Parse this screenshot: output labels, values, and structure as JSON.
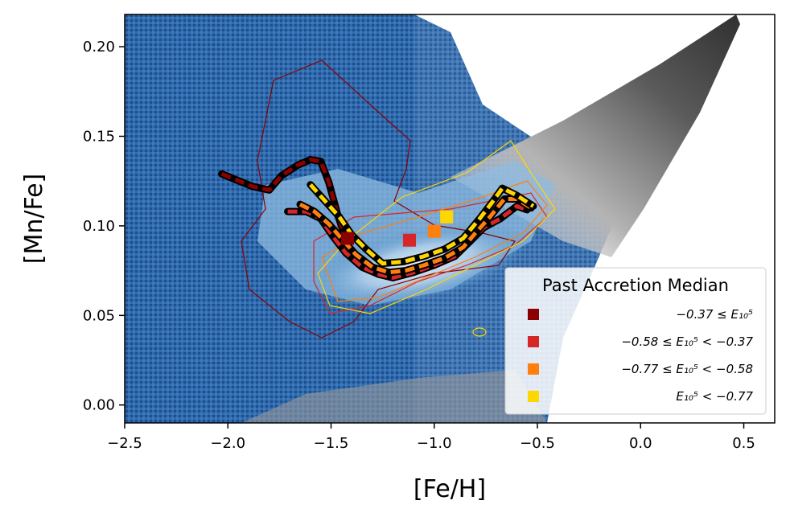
{
  "chart_data": {
    "type": "line",
    "title": "",
    "xlabel": "[Fe/H]",
    "ylabel": "[Mn/Fe]",
    "xlim": [
      -2.5,
      0.65
    ],
    "ylim": [
      -0.01,
      0.218
    ],
    "xticks": [
      -2.5,
      -2.0,
      -1.5,
      -1.0,
      -0.5,
      0.0,
      0.5
    ],
    "xtick_labels": [
      "−2.5",
      "−2.0",
      "−1.5",
      "−1.0",
      "−0.5",
      "0.0",
      "0.5"
    ],
    "yticks": [
      0.0,
      0.05,
      0.1,
      0.15,
      0.2
    ],
    "ytick_labels": [
      "0.00",
      "0.05",
      "0.10",
      "0.15",
      "0.20"
    ],
    "grid": false,
    "background_layers": [
      "2D density histogram (blue colormap, accreted stars)",
      "2D density histogram (grey colormap, in-situ stars)"
    ],
    "legend": {
      "title": "Past Accretion Median",
      "placement": "lower-right",
      "entries": [
        {
          "label": "−0.37 ≤ E₁₀⁵",
          "color": "#8b0000"
        },
        {
          "label": "−0.58 ≤ E₁₀⁵ < −0.37",
          "color": "#d62728"
        },
        {
          "label": "−0.77 ≤ E₁₀⁵ < −0.58",
          "color": "#ff7f0e"
        },
        {
          "label": "E₁₀⁵ < −0.77",
          "color": "#ffd700"
        }
      ]
    },
    "series": [
      {
        "name": "−0.37 ≤ E₁₀⁵",
        "color": "#8b0000",
        "x": [
          -2.03,
          -1.88,
          -1.8,
          -1.74,
          -1.66,
          -1.6,
          -1.55,
          -1.51,
          -1.47,
          -1.43
        ],
        "y": [
          0.129,
          0.122,
          0.12,
          0.128,
          0.134,
          0.137,
          0.136,
          0.124,
          0.107,
          0.093
        ],
        "marker": {
          "x": -1.42,
          "y": 0.093
        }
      },
      {
        "name": "−0.58 ≤ E₁₀⁵ < −0.37",
        "color": "#d62728",
        "x": [
          -1.71,
          -1.62,
          -1.55,
          -1.49,
          -1.43,
          -1.35,
          -1.27,
          -1.2,
          -1.1,
          -1.0,
          -0.9,
          -0.82,
          -0.76,
          -0.68,
          -0.6,
          -0.55
        ],
        "y": [
          0.108,
          0.108,
          0.104,
          0.094,
          0.085,
          0.077,
          0.073,
          0.071,
          0.074,
          0.078,
          0.083,
          0.092,
          0.099,
          0.104,
          0.111,
          0.109
        ],
        "marker": {
          "x": -1.12,
          "y": 0.092
        }
      },
      {
        "name": "−0.77 ≤ E₁₀⁵ < −0.58",
        "color": "#ff7f0e",
        "x": [
          -1.65,
          -1.58,
          -1.51,
          -1.45,
          -1.38,
          -1.3,
          -1.22,
          -1.14,
          -1.05,
          -0.95,
          -0.86,
          -0.8,
          -0.73,
          -0.66,
          -0.6,
          -0.53
        ],
        "y": [
          0.112,
          0.108,
          0.101,
          0.093,
          0.084,
          0.077,
          0.074,
          0.075,
          0.078,
          0.082,
          0.088,
          0.096,
          0.105,
          0.115,
          0.115,
          0.11
        ],
        "marker": {
          "x": -1.0,
          "y": 0.097
        }
      },
      {
        "name": "E₁₀⁵ < −0.77",
        "color": "#ffd700",
        "x": [
          -1.6,
          -1.53,
          -1.46,
          -1.4,
          -1.33,
          -1.25,
          -1.15,
          -1.05,
          -0.95,
          -0.86,
          -0.78,
          -0.72,
          -0.67,
          -0.6,
          -0.52
        ],
        "y": [
          0.123,
          0.114,
          0.105,
          0.095,
          0.087,
          0.079,
          0.08,
          0.083,
          0.087,
          0.093,
          0.104,
          0.113,
          0.121,
          0.117,
          0.111
        ],
        "marker": {
          "x": -0.94,
          "y": 0.105
        }
      }
    ]
  }
}
